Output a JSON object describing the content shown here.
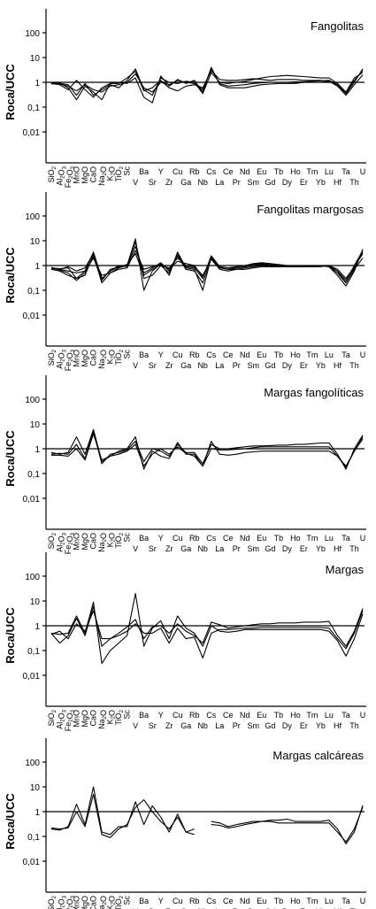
{
  "chart_data": [
    {
      "type": "line",
      "title": "Fangolitas",
      "ylabel": "Roca/UCC",
      "yscale": "log",
      "ylim": [
        0.005,
        500
      ],
      "yticks": [
        "100",
        "10",
        "1",
        "0,1",
        "0,01"
      ],
      "reference_line": 1,
      "categories": [
        "SiO2",
        "Al2O3",
        "Fe2O3",
        "MnO",
        "MgO",
        "CaO",
        "Na2O",
        "K2O",
        "TiO2",
        "Sc",
        "V",
        "Ba",
        "Sr",
        "Y",
        "Zr",
        "Cu",
        "Ga",
        "Rb",
        "Nb",
        "Cs",
        "La",
        "Ce",
        "Pr",
        "Nd",
        "Sm",
        "Eu",
        "Gd",
        "Tb",
        "Dy",
        "Ho",
        "Er",
        "Tm",
        "Yb",
        "Lu",
        "Hf",
        "Ta",
        "Th",
        "U"
      ],
      "series": [
        {
          "values": [
            0.9,
            0.85,
            0.7,
            0.45,
            0.8,
            0.5,
            0.4,
            0.7,
            0.8,
            1.0,
            2.2,
            0.6,
            0.4,
            1.0,
            0.8,
            1.2,
            1.0,
            0.9,
            0.5,
            3.5,
            0.9,
            0.7,
            0.75,
            0.8,
            0.9,
            0.95,
            1.0,
            1.0,
            1.0,
            1.05,
            1.05,
            1.1,
            1.15,
            1.2,
            0.8,
            0.35,
            1.0,
            3.5
          ]
        },
        {
          "values": [
            0.95,
            0.9,
            0.8,
            0.3,
            0.9,
            0.3,
            0.5,
            0.8,
            0.6,
            1.2,
            3.5,
            0.5,
            0.3,
            1.5,
            1.0,
            0.9,
            1.1,
            1.0,
            0.35,
            2.5,
            1.0,
            0.9,
            1.0,
            1.1,
            1.3,
            1.5,
            1.7,
            1.8,
            1.9,
            1.8,
            1.7,
            1.6,
            1.5,
            1.5,
            0.9,
            0.4,
            1.5,
            2.5
          ]
        },
        {
          "values": [
            0.9,
            0.8,
            0.5,
            1.2,
            0.5,
            0.25,
            0.6,
            0.9,
            1.0,
            0.9,
            1.5,
            0.25,
            0.15,
            1.8,
            0.7,
            1.3,
            0.9,
            1.2,
            0.4,
            4.0,
            0.8,
            0.6,
            0.6,
            0.6,
            0.7,
            0.8,
            0.85,
            0.9,
            0.9,
            0.9,
            1.0,
            1.0,
            1.0,
            1.1,
            0.7,
            0.3,
            0.8,
            2.0
          ]
        },
        {
          "values": [
            0.85,
            0.95,
            0.6,
            0.2,
            0.7,
            0.4,
            0.2,
            0.9,
            0.9,
            1.5,
            2.8,
            0.45,
            0.6,
            1.2,
            0.6,
            0.45,
            0.7,
            0.8,
            0.6,
            3.0,
            1.3,
            1.2,
            1.2,
            1.3,
            1.4,
            1.3,
            1.2,
            1.3,
            1.3,
            1.3,
            1.2,
            1.2,
            1.2,
            1.1,
            0.8,
            0.4,
            1.2,
            3.0
          ]
        }
      ]
    },
    {
      "type": "line",
      "title": "Fangolitas margosas",
      "ylabel": "Roca/UCC",
      "yscale": "log",
      "ylim": [
        0.005,
        500
      ],
      "yticks": [
        "100",
        "10",
        "1",
        "0,1",
        "0,01"
      ],
      "reference_line": 1,
      "categories": [
        "SiO2",
        "Al2O3",
        "Fe2O3",
        "MnO",
        "MgO",
        "CaO",
        "Na2O",
        "K2O",
        "TiO2",
        "Sc",
        "V",
        "Ba",
        "Sr",
        "Y",
        "Zr",
        "Cu",
        "Ga",
        "Rb",
        "Nb",
        "Cs",
        "La",
        "Ce",
        "Pr",
        "Nd",
        "Sm",
        "Eu",
        "Gd",
        "Tb",
        "Dy",
        "Ho",
        "Er",
        "Tm",
        "Yb",
        "Lu",
        "Hf",
        "Ta",
        "Th",
        "U"
      ],
      "series": [
        {
          "values": [
            0.8,
            0.7,
            0.6,
            0.5,
            0.6,
            3.5,
            0.3,
            0.6,
            0.9,
            1.0,
            12.0,
            0.1,
            0.6,
            1.2,
            0.4,
            3.5,
            0.8,
            0.7,
            0.1,
            2.2,
            0.9,
            0.8,
            0.9,
            1.0,
            1.2,
            1.3,
            1.2,
            1.1,
            1.0,
            1.0,
            1.0,
            1.0,
            1.0,
            0.9,
            0.4,
            0.15,
            0.6,
            4.5
          ]
        },
        {
          "values": [
            0.8,
            0.75,
            0.8,
            0.3,
            0.4,
            2.8,
            0.2,
            0.5,
            0.8,
            1.0,
            9.0,
            0.3,
            0.4,
            1.0,
            0.5,
            2.5,
            0.7,
            0.6,
            0.2,
            2.0,
            0.8,
            0.7,
            0.8,
            0.9,
            1.0,
            1.1,
            1.0,
            1.0,
            0.9,
            0.9,
            0.9,
            1.0,
            1.0,
            0.9,
            0.5,
            0.2,
            0.8,
            3.5
          ]
        },
        {
          "values": [
            0.75,
            0.7,
            0.9,
            0.6,
            0.8,
            3.0,
            0.3,
            0.6,
            1.0,
            0.9,
            6.0,
            0.5,
            0.8,
            1.3,
            0.6,
            2.8,
            0.9,
            0.8,
            0.3,
            2.5,
            0.9,
            0.8,
            0.8,
            0.9,
            1.1,
            1.2,
            1.1,
            1.0,
            1.0,
            1.0,
            1.0,
            1.0,
            1.0,
            0.9,
            0.6,
            0.25,
            1.0,
            4.0
          ]
        },
        {
          "values": [
            0.7,
            0.6,
            0.4,
            0.3,
            0.6,
            2.0,
            0.4,
            0.5,
            0.7,
            0.8,
            4.0,
            0.7,
            0.9,
            1.0,
            0.8,
            2.0,
            1.0,
            0.9,
            0.4,
            1.8,
            0.7,
            0.6,
            0.7,
            0.7,
            0.8,
            0.9,
            0.9,
            0.9,
            0.9,
            0.9,
            0.9,
            0.9,
            1.0,
            1.0,
            0.7,
            0.3,
            0.9,
            3.0
          ]
        },
        {
          "values": [
            0.85,
            0.65,
            0.5,
            0.25,
            0.5,
            2.2,
            0.25,
            0.7,
            0.85,
            1.1,
            3.0,
            0.4,
            0.7,
            1.1,
            0.7,
            1.5,
            1.2,
            1.0,
            0.35,
            2.0,
            0.8,
            0.7,
            0.7,
            0.8,
            0.9,
            1.0,
            0.9,
            0.9,
            0.9,
            0.9,
            0.9,
            0.9,
            0.9,
            1.0,
            0.6,
            0.2,
            0.7,
            2.0
          ]
        }
      ]
    },
    {
      "type": "line",
      "title": "Margas fangolíticas",
      "ylabel": "Roca/UCC",
      "yscale": "log",
      "ylim": [
        0.005,
        500
      ],
      "yticks": [
        "100",
        "10",
        "1",
        "0,1",
        "0,01"
      ],
      "reference_line": 1,
      "categories": [
        "SiO2",
        "Al2O3",
        "Fe2O3",
        "MnO",
        "MgO",
        "CaO",
        "Na2O",
        "K2O",
        "TiO2",
        "Sc",
        "V",
        "Ba",
        "Sr",
        "Y",
        "Zr",
        "Cu",
        "Ga",
        "Rb",
        "Nb",
        "Cs",
        "La",
        "Ce",
        "Pr",
        "Nd",
        "Sm",
        "Eu",
        "Gd",
        "Tb",
        "Dy",
        "Ho",
        "Er",
        "Tm",
        "Yb",
        "Lu",
        "Hf",
        "Ta",
        "Th",
        "U"
      ],
      "series": [
        {
          "values": [
            0.7,
            0.6,
            0.7,
            3.0,
            0.6,
            6.0,
            0.3,
            0.5,
            0.8,
            1.0,
            3.0,
            0.15,
            0.8,
            0.5,
            0.4,
            1.8,
            0.6,
            0.6,
            0.2,
            2.0,
            0.6,
            0.55,
            0.6,
            0.7,
            0.75,
            0.8,
            0.8,
            0.8,
            0.8,
            0.8,
            0.8,
            0.8,
            0.8,
            0.8,
            0.5,
            0.2,
            0.8,
            3.0
          ]
        },
        {
          "values": [
            0.6,
            0.65,
            0.6,
            1.5,
            0.4,
            5.0,
            0.25,
            0.6,
            0.7,
            0.9,
            2.0,
            0.3,
            1.0,
            0.8,
            0.5,
            1.5,
            0.7,
            0.7,
            0.25,
            1.5,
            1.0,
            1.0,
            1.1,
            1.2,
            1.3,
            1.3,
            1.35,
            1.4,
            1.4,
            1.5,
            1.5,
            1.6,
            1.7,
            1.7,
            0.6,
            0.15,
            1.0,
            3.5
          ]
        },
        {
          "values": [
            0.55,
            0.55,
            0.5,
            1.0,
            0.35,
            4.0,
            0.35,
            0.5,
            0.6,
            0.8,
            1.5,
            0.2,
            0.6,
            1.0,
            0.6,
            1.2,
            0.65,
            0.5,
            0.2,
            1.0,
            0.9,
            0.9,
            0.95,
            1.0,
            1.1,
            1.2,
            1.2,
            1.2,
            1.2,
            1.2,
            1.2,
            1.2,
            1.2,
            1.2,
            0.5,
            0.18,
            0.8,
            2.5
          ]
        }
      ]
    },
    {
      "type": "line",
      "title": "Margas",
      "ylabel": "Roca/UCC",
      "yscale": "log",
      "ylim": [
        0.005,
        500
      ],
      "yticks": [
        "100",
        "10",
        "1",
        "0,1",
        "0,01"
      ],
      "reference_line": 1,
      "categories": [
        "SiO2",
        "Al2O3",
        "Fe2O3",
        "MnO",
        "MgO",
        "CaO",
        "Na2O",
        "K2O",
        "TiO2",
        "Sc",
        "V",
        "Ba",
        "Sr",
        "Y",
        "Zr",
        "Cu",
        "Ga",
        "Rb",
        "Nb",
        "Cs",
        "La",
        "Ce",
        "Pr",
        "Nd",
        "Sm",
        "Eu",
        "Gd",
        "Tb",
        "Dy",
        "Ho",
        "Er",
        "Tm",
        "Yb",
        "Lu",
        "Hf",
        "Ta",
        "Th",
        "U"
      ],
      "series": [
        {
          "values": [
            0.5,
            0.45,
            0.5,
            2.5,
            0.5,
            9.0,
            0.03,
            0.1,
            0.2,
            0.4,
            20.0,
            0.15,
            0.8,
            1.6,
            0.3,
            2.5,
            0.8,
            0.5,
            0.15,
            1.0,
            0.6,
            0.55,
            0.6,
            0.7,
            0.7,
            0.7,
            0.7,
            0.7,
            0.7,
            0.7,
            0.7,
            0.7,
            0.7,
            0.6,
            0.25,
            0.06,
            0.3,
            3.0
          ]
        },
        {
          "values": [
            0.5,
            0.2,
            0.4,
            2.0,
            0.4,
            6.0,
            0.15,
            0.3,
            0.4,
            0.6,
            1.2,
            0.5,
            0.5,
            0.8,
            0.2,
            0.8,
            0.3,
            0.35,
            0.05,
            0.5,
            0.7,
            0.7,
            0.75,
            0.8,
            0.8,
            0.85,
            0.85,
            0.85,
            0.85,
            0.85,
            0.85,
            0.85,
            0.85,
            0.8,
            0.3,
            0.12,
            0.5,
            4.0
          ]
        },
        {
          "values": [
            0.45,
            0.6,
            0.3,
            1.2,
            0.6,
            4.0,
            0.3,
            0.3,
            0.5,
            0.9,
            1.8,
            0.3,
            0.9,
            1.0,
            0.5,
            1.2,
            0.6,
            0.4,
            0.2,
            1.4,
            1.1,
            0.8,
            0.9,
            1.0,
            1.1,
            1.2,
            1.2,
            1.3,
            1.3,
            1.3,
            1.4,
            1.4,
            1.4,
            1.5,
            0.4,
            0.15,
            0.6,
            5.0
          ]
        }
      ]
    },
    {
      "type": "line",
      "title": "Margas calcáreas",
      "ylabel": "Roca/UCC",
      "yscale": "log",
      "ylim": [
        0.005,
        500
      ],
      "yticks": [
        "100",
        "10",
        "1",
        "0,1",
        "0,01"
      ],
      "reference_line": 1,
      "categories": [
        "SiO2",
        "Al2O3",
        "Fe2O3",
        "MnO",
        "MgO",
        "CaO",
        "Na2O",
        "K2O",
        "TiO2",
        "Sc",
        "V",
        "Ba",
        "Sr",
        "Y",
        "Zr",
        "Cu",
        "Ga",
        "Rb",
        "Nb",
        "Cs",
        "La",
        "Ce",
        "Pr",
        "Nd",
        "Sm",
        "Eu",
        "Gd",
        "Tb",
        "Dy",
        "Ho",
        "Er",
        "Tm",
        "Yb",
        "Lu",
        "Hf",
        "Ta",
        "Th",
        "U"
      ],
      "series": [
        {
          "values": [
            0.2,
            0.18,
            0.25,
            2.0,
            0.3,
            10.0,
            0.15,
            0.12,
            0.25,
            0.25,
            2.5,
            0.3,
            1.7,
            0.6,
            0.15,
            0.8,
            0.15,
            0.2,
            null,
            0.4,
            0.35,
            0.25,
            0.3,
            0.35,
            0.4,
            0.4,
            0.45,
            0.45,
            0.5,
            0.4,
            0.4,
            0.4,
            0.4,
            0.45,
            0.2,
            0.05,
            0.15,
            1.8
          ]
        },
        {
          "values": [
            0.22,
            0.2,
            0.22,
            1.0,
            0.25,
            5.0,
            0.12,
            0.09,
            0.2,
            0.3,
            1.5,
            3.0,
            1.0,
            0.4,
            0.2,
            0.6,
            0.15,
            0.12,
            null,
            0.3,
            0.28,
            0.22,
            0.25,
            0.3,
            0.35,
            0.4,
            0.4,
            0.35,
            0.35,
            0.35,
            0.35,
            0.35,
            0.35,
            0.35,
            0.15,
            0.06,
            0.2,
            1.5
          ]
        }
      ]
    }
  ],
  "xtick_labels": [
    {
      "base": "SiO",
      "sub": "2"
    },
    {
      "base": "Al",
      "sub": "2",
      "mid": "O",
      "sub2": "3"
    },
    {
      "base": "Fe",
      "sub": "2",
      "mid": "O",
      "sub2": "3"
    },
    {
      "base": "MnO"
    },
    {
      "base": "MgO"
    },
    {
      "base": "CaO"
    },
    {
      "base": "Na",
      "sub": "2",
      "mid": "O"
    },
    {
      "base": "K",
      "sub": "2",
      "mid": "O"
    },
    {
      "base": "TiO",
      "sub": "2"
    },
    {
      "base": "Sc"
    }
  ],
  "xtick_lower": [
    "V",
    "Sr",
    "Zr",
    "Ga",
    "Nb",
    "La",
    "Pr",
    "Sm",
    "Gd",
    "Dy",
    "Er",
    "Yb",
    "Hf",
    "Th"
  ],
  "xtick_upper": [
    "Ba",
    "Y",
    "Cu",
    "Rb",
    "Cs",
    "Ce",
    "Nd",
    "Eu",
    "Tb",
    "Ho",
    "Tm",
    "Lu",
    "Ta",
    "U"
  ]
}
